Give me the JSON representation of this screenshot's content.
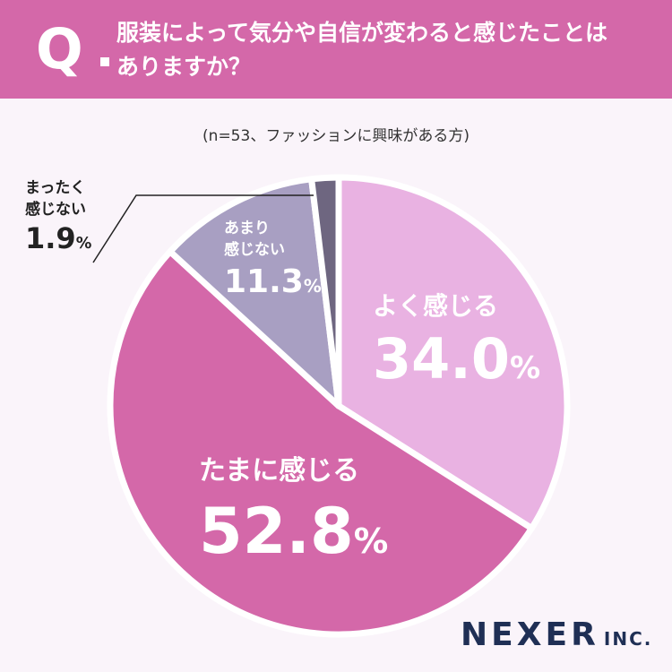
{
  "header": {
    "q_mark": "Q",
    "question_line1": "服装によって気分や自信が変わると感じたことは",
    "question_line2": "ありますか？"
  },
  "sample_note": "(n=53、ファッションに興味がある方)",
  "colors": {
    "header_bg": "#d468a9",
    "yoku": "#e9b2e2",
    "tamani": "#d468a9",
    "amari": "#a89fc2",
    "mattaku": "#6e6680"
  },
  "chart_data": {
    "type": "pie",
    "slices": [
      {
        "label": "よく感じる",
        "value": 34.0,
        "value_text": "34.0",
        "unit": "%"
      },
      {
        "label": "たまに感じる",
        "value": 52.8,
        "value_text": "52.8",
        "unit": "%"
      },
      {
        "label_line1": "あまり",
        "label_line2": "感じない",
        "value": 11.3,
        "value_text": "11.3",
        "unit": "%"
      },
      {
        "label_line1": "まったく",
        "label_line2": "感じない",
        "value": 1.9,
        "value_text": "1.9",
        "unit": "%"
      }
    ]
  },
  "logo": {
    "main": "NEXER",
    "suffix": "INC."
  }
}
